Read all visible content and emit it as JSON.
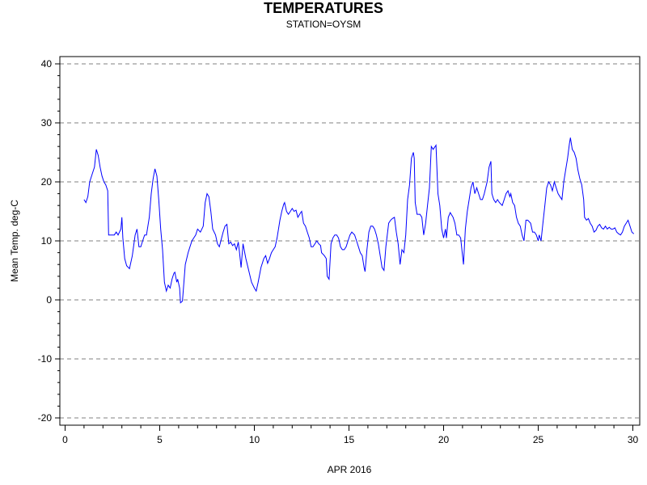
{
  "chart_data": {
    "type": "line",
    "title": "TEMPERATURES",
    "subtitle": "STATION=OYSM",
    "xlabel": "APR 2016",
    "ylabel": "Mean Temp. deg-C",
    "xlim": [
      0,
      30.3
    ],
    "ylim": [
      -21,
      41
    ],
    "x_ticks": [
      0,
      5,
      10,
      15,
      20,
      25,
      30
    ],
    "y_ticks": [
      -20,
      -10,
      0,
      10,
      20,
      30,
      40
    ],
    "grid": "horizontal dashed at major y ticks",
    "line_color": "#0000ff",
    "series": [
      {
        "points": [
          [
            1.0,
            17.0
          ],
          [
            1.1,
            16.5
          ],
          [
            1.2,
            17.5
          ],
          [
            1.3,
            20.0
          ],
          [
            1.45,
            21.5
          ],
          [
            1.55,
            22.5
          ],
          [
            1.65,
            25.5
          ],
          [
            1.75,
            24.5
          ],
          [
            1.85,
            22.5
          ],
          [
            1.95,
            21.0
          ],
          [
            2.05,
            20.0
          ],
          [
            2.15,
            19.5
          ],
          [
            2.25,
            18.5
          ],
          [
            2.3,
            11.0
          ],
          [
            2.45,
            11.0
          ],
          [
            2.6,
            11.0
          ],
          [
            2.7,
            11.5
          ],
          [
            2.8,
            11.0
          ],
          [
            2.95,
            12.0
          ],
          [
            3.0,
            14.0
          ],
          [
            3.05,
            10.5
          ],
          [
            3.15,
            7.0
          ],
          [
            3.25,
            5.8
          ],
          [
            3.4,
            5.3
          ],
          [
            3.55,
            7.5
          ],
          [
            3.7,
            11.0
          ],
          [
            3.8,
            12.0
          ],
          [
            3.9,
            9.0
          ],
          [
            4.0,
            9.0
          ],
          [
            4.1,
            10.0
          ],
          [
            4.2,
            11.0
          ],
          [
            4.3,
            11.0
          ],
          [
            4.45,
            14.0
          ],
          [
            4.55,
            18.0
          ],
          [
            4.65,
            20.5
          ],
          [
            4.75,
            22.2
          ],
          [
            4.85,
            21.0
          ],
          [
            4.95,
            17.0
          ],
          [
            5.05,
            12.0
          ],
          [
            5.15,
            8.5
          ],
          [
            5.25,
            3.0
          ],
          [
            5.35,
            1.5
          ],
          [
            5.45,
            2.5
          ],
          [
            5.55,
            2.0
          ],
          [
            5.65,
            3.5
          ],
          [
            5.75,
            4.5
          ],
          [
            5.8,
            4.7
          ],
          [
            5.9,
            3.0
          ],
          [
            5.95,
            3.5
          ],
          [
            6.05,
            2.0
          ],
          [
            6.1,
            -0.5
          ],
          [
            6.2,
            -0.2
          ],
          [
            6.35,
            6.0
          ],
          [
            6.5,
            8.0
          ],
          [
            6.6,
            9.0
          ],
          [
            6.7,
            10.0
          ],
          [
            6.8,
            10.5
          ],
          [
            6.9,
            11.0
          ],
          [
            7.0,
            12.0
          ],
          [
            7.15,
            11.5
          ],
          [
            7.3,
            12.5
          ],
          [
            7.4,
            16.5
          ],
          [
            7.5,
            18.0
          ],
          [
            7.6,
            17.5
          ],
          [
            7.7,
            15.0
          ],
          [
            7.8,
            12.0
          ],
          [
            7.95,
            11.0
          ],
          [
            8.05,
            9.5
          ],
          [
            8.15,
            9.0
          ],
          [
            8.35,
            11.5
          ],
          [
            8.45,
            12.5
          ],
          [
            8.55,
            12.8
          ],
          [
            8.65,
            9.5
          ],
          [
            8.75,
            9.8
          ],
          [
            8.85,
            9.2
          ],
          [
            8.95,
            9.5
          ],
          [
            9.05,
            8.5
          ],
          [
            9.15,
            9.8
          ],
          [
            9.2,
            8.5
          ],
          [
            9.3,
            5.5
          ],
          [
            9.4,
            9.5
          ],
          [
            9.55,
            7.0
          ],
          [
            9.7,
            5.0
          ],
          [
            9.85,
            3.0
          ],
          [
            10.0,
            2.0
          ],
          [
            10.1,
            1.5
          ],
          [
            10.2,
            3.0
          ],
          [
            10.35,
            5.5
          ],
          [
            10.5,
            7.0
          ],
          [
            10.6,
            7.5
          ],
          [
            10.7,
            6.2
          ],
          [
            10.8,
            7.0
          ],
          [
            10.9,
            8.0
          ],
          [
            11.0,
            8.5
          ],
          [
            11.1,
            9.0
          ],
          [
            11.2,
            10.5
          ],
          [
            11.35,
            13.5
          ],
          [
            11.45,
            15.0
          ],
          [
            11.55,
            16.2
          ],
          [
            11.6,
            16.5
          ],
          [
            11.7,
            15.0
          ],
          [
            11.8,
            14.5
          ],
          [
            11.9,
            15.0
          ],
          [
            12.0,
            15.5
          ],
          [
            12.1,
            15.0
          ],
          [
            12.2,
            15.2
          ],
          [
            12.3,
            14.0
          ],
          [
            12.45,
            14.8
          ],
          [
            12.5,
            15.0
          ],
          [
            12.6,
            13.0
          ],
          [
            12.7,
            12.5
          ],
          [
            12.8,
            11.5
          ],
          [
            12.9,
            10.5
          ],
          [
            13.0,
            9.0
          ],
          [
            13.1,
            9.0
          ],
          [
            13.2,
            9.5
          ],
          [
            13.3,
            10.0
          ],
          [
            13.4,
            9.5
          ],
          [
            13.5,
            9.2
          ],
          [
            13.55,
            8.0
          ],
          [
            13.7,
            7.5
          ],
          [
            13.8,
            7.0
          ],
          [
            13.85,
            4.0
          ],
          [
            13.95,
            3.5
          ],
          [
            14.05,
            9.5
          ],
          [
            14.15,
            10.5
          ],
          [
            14.25,
            11.0
          ],
          [
            14.35,
            11.0
          ],
          [
            14.45,
            10.5
          ],
          [
            14.55,
            9.0
          ],
          [
            14.65,
            8.5
          ],
          [
            14.75,
            8.5
          ],
          [
            14.85,
            9.0
          ],
          [
            14.95,
            10.0
          ],
          [
            15.05,
            11.0
          ],
          [
            15.15,
            11.5
          ],
          [
            15.3,
            11.0
          ],
          [
            15.4,
            10.0
          ],
          [
            15.5,
            9.0
          ],
          [
            15.6,
            8.0
          ],
          [
            15.7,
            7.5
          ],
          [
            15.8,
            5.5
          ],
          [
            15.85,
            4.8
          ],
          [
            15.95,
            8.5
          ],
          [
            16.05,
            11.5
          ],
          [
            16.15,
            12.5
          ],
          [
            16.25,
            12.5
          ],
          [
            16.35,
            12.0
          ],
          [
            16.45,
            11.0
          ],
          [
            16.55,
            9.5
          ],
          [
            16.65,
            7.5
          ],
          [
            16.75,
            5.5
          ],
          [
            16.85,
            5.0
          ],
          [
            16.95,
            9.0
          ],
          [
            17.1,
            13.0
          ],
          [
            17.2,
            13.5
          ],
          [
            17.3,
            13.8
          ],
          [
            17.4,
            14.0
          ],
          [
            17.5,
            11.5
          ],
          [
            17.6,
            9.5
          ],
          [
            17.7,
            6.0
          ],
          [
            17.8,
            8.5
          ],
          [
            17.9,
            8.0
          ],
          [
            18.0,
            11.0
          ],
          [
            18.1,
            17.0
          ],
          [
            18.2,
            19.5
          ],
          [
            18.3,
            24.0
          ],
          [
            18.4,
            25.0
          ],
          [
            18.45,
            24.0
          ],
          [
            18.5,
            16.5
          ],
          [
            18.6,
            14.5
          ],
          [
            18.75,
            14.5
          ],
          [
            18.85,
            14.0
          ],
          [
            18.95,
            11.0
          ],
          [
            19.05,
            13.0
          ],
          [
            19.15,
            16.0
          ],
          [
            19.25,
            19.0
          ],
          [
            19.35,
            26.0
          ],
          [
            19.45,
            25.5
          ],
          [
            19.6,
            26.2
          ],
          [
            19.7,
            18.0
          ],
          [
            19.8,
            16.0
          ],
          [
            19.9,
            12.0
          ],
          [
            20.0,
            10.5
          ],
          [
            20.1,
            12.0
          ],
          [
            20.15,
            10.5
          ],
          [
            20.25,
            14.0
          ],
          [
            20.35,
            14.8
          ],
          [
            20.5,
            14.0
          ],
          [
            20.6,
            13.0
          ],
          [
            20.7,
            11.0
          ],
          [
            20.8,
            11.0
          ],
          [
            20.9,
            10.5
          ],
          [
            21.0,
            7.5
          ],
          [
            21.05,
            6.0
          ],
          [
            21.15,
            12.0
          ],
          [
            21.25,
            15.0
          ],
          [
            21.35,
            17.0
          ],
          [
            21.45,
            19.0
          ],
          [
            21.55,
            20.0
          ],
          [
            21.65,
            18.0
          ],
          [
            21.75,
            19.0
          ],
          [
            21.85,
            18.0
          ],
          [
            21.95,
            17.0
          ],
          [
            22.05,
            17.0
          ],
          [
            22.15,
            18.0
          ],
          [
            22.3,
            20.0
          ],
          [
            22.4,
            22.5
          ],
          [
            22.5,
            23.5
          ],
          [
            22.55,
            18.0
          ],
          [
            22.65,
            17.0
          ],
          [
            22.75,
            16.5
          ],
          [
            22.85,
            17.0
          ],
          [
            22.95,
            16.5
          ],
          [
            23.1,
            16.0
          ],
          [
            23.2,
            17.0
          ],
          [
            23.3,
            18.0
          ],
          [
            23.4,
            18.5
          ],
          [
            23.5,
            17.5
          ],
          [
            23.55,
            18.0
          ],
          [
            23.65,
            16.5
          ],
          [
            23.75,
            16.0
          ],
          [
            23.85,
            14.0
          ],
          [
            23.95,
            13.0
          ],
          [
            24.05,
            12.5
          ],
          [
            24.15,
            11.0
          ],
          [
            24.25,
            10.0
          ],
          [
            24.35,
            13.5
          ],
          [
            24.45,
            13.5
          ],
          [
            24.6,
            13.0
          ],
          [
            24.7,
            11.5
          ],
          [
            24.8,
            11.5
          ],
          [
            24.9,
            11.0
          ],
          [
            25.0,
            10.0
          ],
          [
            25.05,
            11.0
          ],
          [
            25.15,
            10.0
          ],
          [
            25.25,
            13.0
          ],
          [
            25.35,
            16.0
          ],
          [
            25.45,
            19.0
          ],
          [
            25.55,
            20.0
          ],
          [
            25.65,
            19.5
          ],
          [
            25.75,
            18.5
          ],
          [
            25.85,
            20.0
          ],
          [
            25.95,
            19.0
          ],
          [
            26.05,
            18.0
          ],
          [
            26.15,
            17.5
          ],
          [
            26.25,
            17.0
          ],
          [
            26.35,
            20.0
          ],
          [
            26.45,
            22.0
          ],
          [
            26.55,
            24.0
          ],
          [
            26.65,
            26.5
          ],
          [
            26.7,
            27.5
          ],
          [
            26.8,
            25.5
          ],
          [
            26.9,
            25.0
          ],
          [
            27.0,
            24.0
          ],
          [
            27.1,
            22.0
          ],
          [
            27.2,
            20.5
          ],
          [
            27.3,
            19.5
          ],
          [
            27.4,
            17.0
          ],
          [
            27.45,
            14.0
          ],
          [
            27.55,
            13.5
          ],
          [
            27.65,
            13.8
          ],
          [
            27.75,
            13.0
          ],
          [
            27.85,
            12.5
          ],
          [
            27.95,
            11.5
          ],
          [
            28.05,
            11.8
          ],
          [
            28.15,
            12.5
          ],
          [
            28.25,
            12.8
          ],
          [
            28.35,
            12.2
          ],
          [
            28.45,
            12.0
          ],
          [
            28.55,
            12.5
          ],
          [
            28.65,
            12.0
          ],
          [
            28.75,
            12.3
          ],
          [
            28.85,
            12.0
          ],
          [
            28.95,
            12.0
          ],
          [
            29.05,
            12.2
          ],
          [
            29.15,
            11.5
          ],
          [
            29.25,
            11.2
          ],
          [
            29.35,
            11.0
          ],
          [
            29.45,
            11.5
          ],
          [
            29.55,
            12.5
          ],
          [
            29.65,
            13.0
          ],
          [
            29.75,
            13.5
          ],
          [
            29.85,
            12.5
          ],
          [
            29.95,
            11.5
          ],
          [
            30.05,
            11.2
          ]
        ]
      }
    ]
  }
}
